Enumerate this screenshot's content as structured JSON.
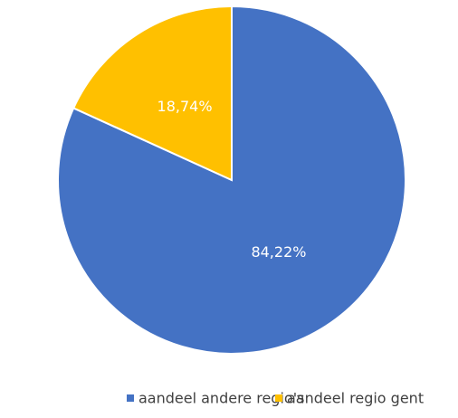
{
  "chart_data": {
    "type": "pie",
    "categories": [
      "aandeel andere regio's",
      "aandeel regio gent"
    ],
    "values": [
      84.22,
      18.74
    ],
    "value_labels": [
      "84,22%",
      "18,74%"
    ],
    "colors": [
      "#4472c4",
      "#ffc000"
    ],
    "legend": "bottom"
  }
}
